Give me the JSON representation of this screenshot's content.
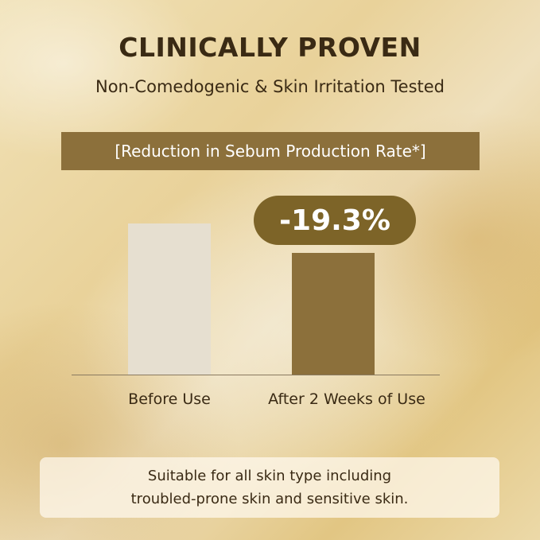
{
  "header": {
    "title": "CLINICALLY PROVEN",
    "subtitle": "Non-Comedogenic & Skin Irritation Tested"
  },
  "chart_data": {
    "type": "bar",
    "title": "[Reduction in Sebum Production Rate*]",
    "categories": [
      "Before Use",
      "After 2 Weeks of Use"
    ],
    "values": [
      100,
      80.7
    ],
    "colors": [
      "#e6dfd0",
      "#8c703b"
    ],
    "annotation": "-19.3%",
    "ylim": [
      0,
      100
    ]
  },
  "footer": {
    "lines": [
      "Suitable for all skin type including",
      "troubled-prone skin and sensitive skin."
    ]
  }
}
